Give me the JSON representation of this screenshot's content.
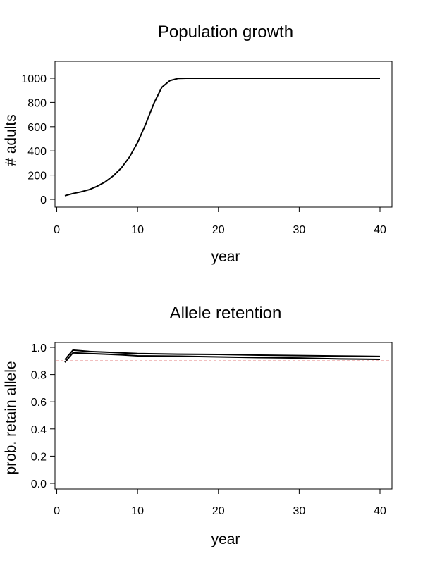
{
  "chart_data": [
    {
      "type": "line",
      "title": "Population growth",
      "xlabel": "year",
      "ylabel": "# adults",
      "xlim": [
        1,
        40
      ],
      "ylim": [
        0,
        1000
      ],
      "xticks": [
        0,
        10,
        20,
        30,
        40
      ],
      "yticks": [
        0,
        200,
        400,
        600,
        800,
        1000
      ],
      "grid": false,
      "series": [
        {
          "x": [
            1,
            2,
            3,
            4,
            5,
            6,
            7,
            8,
            9,
            10,
            11,
            12,
            13,
            14,
            15,
            16,
            17,
            18,
            19,
            20,
            21,
            22,
            23,
            24,
            25,
            26,
            27,
            28,
            29,
            30,
            31,
            32,
            33,
            34,
            35,
            36,
            37,
            38,
            39,
            40
          ],
          "values": [
            30,
            48,
            62,
            80,
            108,
            145,
            195,
            260,
            350,
            470,
            620,
            790,
            925,
            980,
            998,
            1000,
            1000,
            1000,
            1000,
            1000,
            1000,
            1000,
            1000,
            1000,
            1000,
            1000,
            1000,
            1000,
            1000,
            1000,
            1000,
            1000,
            1000,
            1000,
            1000,
            1000,
            1000,
            1000,
            1000,
            1000
          ]
        }
      ]
    },
    {
      "type": "line",
      "title": "Allele retention",
      "xlabel": "year",
      "ylabel": "prob. retain allele",
      "xlim": [
        1,
        40
      ],
      "ylim": [
        0,
        1
      ],
      "xticks": [
        0,
        10,
        20,
        30,
        40
      ],
      "yticks": [
        0.0,
        0.2,
        0.4,
        0.6,
        0.8,
        1.0
      ],
      "yticklabels": [
        "0.0",
        "0.2",
        "0.4",
        "0.6",
        "0.8",
        "1.0"
      ],
      "grid": false,
      "reference_line": {
        "y": 0.9,
        "color": "#cc0000",
        "style": "dashed"
      },
      "series": [
        {
          "x": [
            1,
            2,
            4,
            6,
            8,
            10,
            15,
            20,
            25,
            30,
            35,
            40
          ],
          "values": [
            0.91,
            0.98,
            0.97,
            0.965,
            0.96,
            0.955,
            0.95,
            0.948,
            0.943,
            0.94,
            0.937,
            0.933
          ]
        },
        {
          "x": [
            1,
            2,
            4,
            6,
            8,
            10,
            15,
            20,
            25,
            30,
            35,
            40
          ],
          "values": [
            0.89,
            0.96,
            0.955,
            0.95,
            0.945,
            0.938,
            0.935,
            0.93,
            0.925,
            0.922,
            0.915,
            0.912
          ]
        }
      ]
    }
  ]
}
